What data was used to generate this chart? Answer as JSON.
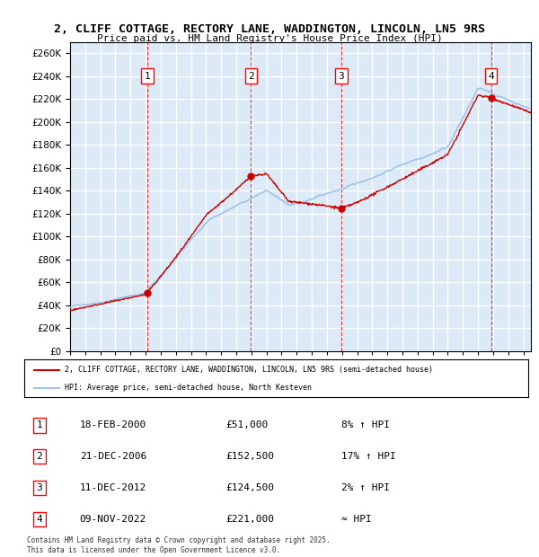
{
  "title_line1": "2, CLIFF COTTAGE, RECTORY LANE, WADDINGTON, LINCOLN, LN5 9RS",
  "title_line2": "Price paid vs. HM Land Registry's House Price Index (HPI)",
  "plot_bg_color": "#dce9f7",
  "grid_color": "#ffffff",
  "hpi_color": "#a0c4e8",
  "price_color": "#cc0000",
  "ylim": [
    0,
    270000
  ],
  "yticks": [
    0,
    20000,
    40000,
    60000,
    80000,
    100000,
    120000,
    140000,
    160000,
    180000,
    200000,
    220000,
    240000,
    260000
  ],
  "sales": [
    {
      "label": 1,
      "year": 2000.12,
      "price": 51000
    },
    {
      "label": 2,
      "year": 2006.97,
      "price": 152500
    },
    {
      "label": 3,
      "year": 2012.95,
      "price": 124500
    },
    {
      "label": 4,
      "year": 2022.86,
      "price": 221000
    }
  ],
  "table_entries": [
    {
      "num": 1,
      "date": "18-FEB-2000",
      "price": "£51,000",
      "change": "8% ↑ HPI"
    },
    {
      "num": 2,
      "date": "21-DEC-2006",
      "price": "£152,500",
      "change": "17% ↑ HPI"
    },
    {
      "num": 3,
      "date": "11-DEC-2012",
      "price": "£124,500",
      "change": "2% ↑ HPI"
    },
    {
      "num": 4,
      "date": "09-NOV-2022",
      "price": "£221,000",
      "change": "≈ HPI"
    }
  ],
  "legend_line1": "2, CLIFF COTTAGE, RECTORY LANE, WADDINGTON, LINCOLN, LN5 9RS (semi-detached house)",
  "legend_line2": "HPI: Average price, semi-detached house, North Kesteven",
  "footer": "Contains HM Land Registry data © Crown copyright and database right 2025.\nThis data is licensed under the Open Government Licence v3.0.",
  "xmin": 1995,
  "xmax": 2025.5
}
